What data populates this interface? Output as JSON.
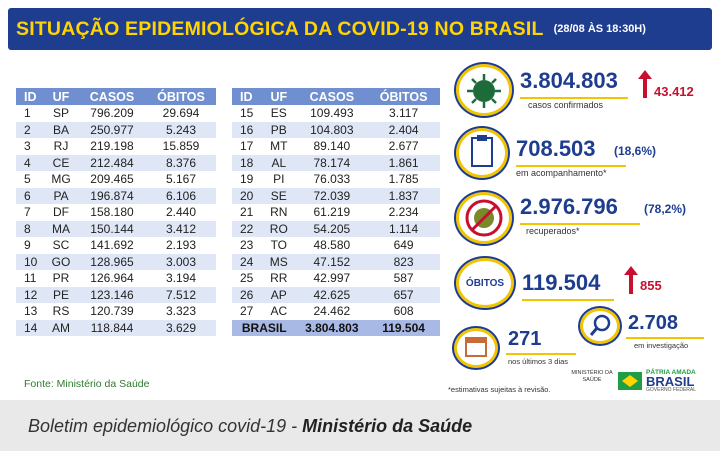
{
  "header": {
    "title": "SITUAÇÃO EPIDEMIOLÓGICA DA COVID-19 NO BRASIL",
    "timestamp": "(28/08 ÀS 18:30H)"
  },
  "table": {
    "headers": [
      "ID",
      "UF",
      "CASOS",
      "ÓBITOS"
    ],
    "left": [
      [
        "1",
        "SP",
        "796.209",
        "29.694"
      ],
      [
        "2",
        "BA",
        "250.977",
        "5.243"
      ],
      [
        "3",
        "RJ",
        "219.198",
        "15.859"
      ],
      [
        "4",
        "CE",
        "212.484",
        "8.376"
      ],
      [
        "5",
        "MG",
        "209.465",
        "5.167"
      ],
      [
        "6",
        "PA",
        "196.874",
        "6.106"
      ],
      [
        "7",
        "DF",
        "158.180",
        "2.440"
      ],
      [
        "8",
        "MA",
        "150.144",
        "3.412"
      ],
      [
        "9",
        "SC",
        "141.692",
        "2.193"
      ],
      [
        "10",
        "GO",
        "128.965",
        "3.003"
      ],
      [
        "11",
        "PR",
        "126.964",
        "3.194"
      ],
      [
        "12",
        "PE",
        "123.146",
        "7.512"
      ],
      [
        "13",
        "RS",
        "120.739",
        "3.323"
      ],
      [
        "14",
        "AM",
        "118.844",
        "3.629"
      ]
    ],
    "right": [
      [
        "15",
        "ES",
        "109.493",
        "3.117"
      ],
      [
        "16",
        "PB",
        "104.803",
        "2.404"
      ],
      [
        "17",
        "MT",
        "89.140",
        "2.677"
      ],
      [
        "18",
        "AL",
        "78.174",
        "1.861"
      ],
      [
        "19",
        "PI",
        "76.033",
        "1.785"
      ],
      [
        "20",
        "SE",
        "72.039",
        "1.837"
      ],
      [
        "21",
        "RN",
        "61.219",
        "2.234"
      ],
      [
        "22",
        "RO",
        "54.205",
        "1.114"
      ],
      [
        "23",
        "TO",
        "48.580",
        "649"
      ],
      [
        "24",
        "MS",
        "47.152",
        "823"
      ],
      [
        "25",
        "RR",
        "42.997",
        "587"
      ],
      [
        "26",
        "AP",
        "42.625",
        "657"
      ],
      [
        "27",
        "AC",
        "24.462",
        "608"
      ]
    ],
    "total": {
      "label": "BRASIL",
      "casos": "3.804.803",
      "obitos": "119.504"
    }
  },
  "source": "Fonte: Ministério da Saúde",
  "stats": {
    "confirmed": {
      "value": "3.804.803",
      "delta": "43.412",
      "label": "casos confirmados"
    },
    "monitoring": {
      "value": "708.503",
      "pct": "(18,6%)",
      "label": "em acompanhamento*"
    },
    "recovered": {
      "value": "2.976.796",
      "pct": "(78,2%)",
      "label": "recuperados*"
    },
    "deaths": {
      "title": "ÓBITOS",
      "value": "119.504",
      "delta": "855"
    },
    "last3days": {
      "value": "271",
      "label": "nos últimos 3 dias"
    },
    "investigation": {
      "value": "2.708",
      "label": "em investigação"
    }
  },
  "note": "*estimativas sujeitas à revisão.",
  "logos": {
    "ministerio": "MINISTÉRIO DA SAÚDE",
    "patria": "PÁTRIA AMADA",
    "brasil": "BRASIL",
    "governo": "GOVERNO FEDERAL"
  },
  "caption": {
    "prefix": "Boletim epidemiológico covid-19 - ",
    "bold": "Ministério da Saúde"
  },
  "colors": {
    "navy": "#1e3d8f",
    "yellow": "#ffd400",
    "red": "#c8102e",
    "header_blue": "#6f8fd1"
  }
}
